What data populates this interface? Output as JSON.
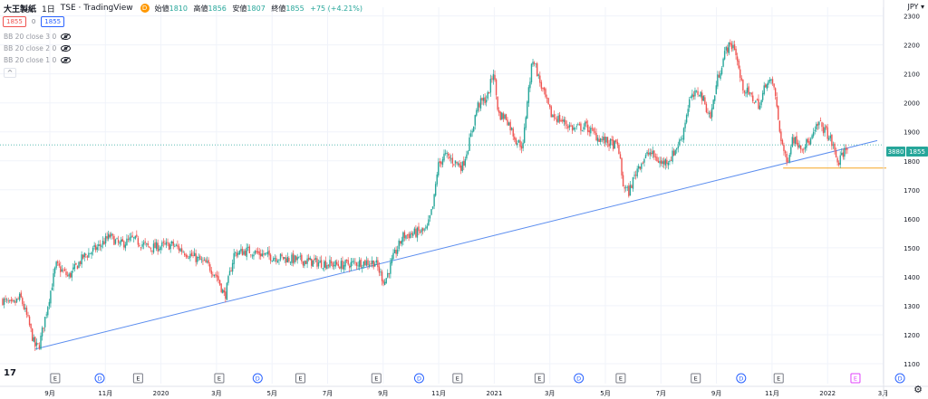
{
  "header": {
    "symbol": "大王製紙",
    "timeframe": "1日",
    "exchange": "TSE · TradingView",
    "status_dot": "D",
    "ohlc": [
      {
        "label": "始値",
        "value": "1810"
      },
      {
        "label": "高値",
        "value": "1856"
      },
      {
        "label": "安値",
        "value": "1807"
      },
      {
        "label": "終値",
        "value": "1855"
      }
    ],
    "change": "+75 (+4.21%)"
  },
  "trade_boxes": {
    "sell": "1855",
    "spread": "0",
    "buy": "1855"
  },
  "indicators": [
    "BB 20 close 3 0",
    "BB 20 close 2 0",
    "BB 20 close 1 0"
  ],
  "collapse_icon": "^",
  "currency": "JPY",
  "price_tags": {
    "volume": "3880",
    "last": "1855"
  },
  "colors": {
    "up": "#26a69a",
    "down": "#ef5350",
    "trendline": "#5b8def",
    "support": "#f5a623",
    "lastline": "#26a69a",
    "grid": "#f0f3fa"
  },
  "chart_data": {
    "type": "candlestick",
    "y_ticks": [
      1100,
      1200,
      1300,
      1400,
      1500,
      1600,
      1700,
      1800,
      1900,
      2000,
      2100,
      2200,
      2300
    ],
    "ylim": [
      1100,
      2330
    ],
    "x_ticks": [
      "9月",
      "11月",
      "2020",
      "3月",
      "5月",
      "7月",
      "9月",
      "11月",
      "2021",
      "3月",
      "5月",
      "7月",
      "9月",
      "11月",
      "2022",
      "3月"
    ],
    "last_price": 1855,
    "trendline": {
      "from_price": 1150,
      "to_price": 1870
    },
    "support_line": {
      "price": 1775
    },
    "price_path": [
      {
        "t": 0,
        "p": 1320
      },
      {
        "t": 0.011,
        "p": 1300
      },
      {
        "t": 0.021,
        "p": 1330
      },
      {
        "t": 0.03,
        "p": 1250
      },
      {
        "t": 0.038,
        "p": 1160
      },
      {
        "t": 0.043,
        "p": 1160
      },
      {
        "t": 0.051,
        "p": 1270
      },
      {
        "t": 0.063,
        "p": 1440
      },
      {
        "t": 0.078,
        "p": 1400
      },
      {
        "t": 0.096,
        "p": 1470
      },
      {
        "t": 0.112,
        "p": 1500
      },
      {
        "t": 0.127,
        "p": 1540
      },
      {
        "t": 0.138,
        "p": 1510
      },
      {
        "t": 0.154,
        "p": 1530
      },
      {
        "t": 0.174,
        "p": 1500
      },
      {
        "t": 0.201,
        "p": 1510
      },
      {
        "t": 0.225,
        "p": 1470
      },
      {
        "t": 0.243,
        "p": 1440
      },
      {
        "t": 0.254,
        "p": 1400
      },
      {
        "t": 0.263,
        "p": 1330
      },
      {
        "t": 0.274,
        "p": 1480
      },
      {
        "t": 0.29,
        "p": 1490
      },
      {
        "t": 0.318,
        "p": 1470
      },
      {
        "t": 0.343,
        "p": 1460
      },
      {
        "t": 0.371,
        "p": 1450
      },
      {
        "t": 0.399,
        "p": 1440
      },
      {
        "t": 0.425,
        "p": 1450
      },
      {
        "t": 0.441,
        "p": 1450
      },
      {
        "t": 0.452,
        "p": 1380
      },
      {
        "t": 0.463,
        "p": 1470
      },
      {
        "t": 0.474,
        "p": 1540
      },
      {
        "t": 0.487,
        "p": 1550
      },
      {
        "t": 0.502,
        "p": 1560
      },
      {
        "t": 0.51,
        "p": 1650
      },
      {
        "t": 0.515,
        "p": 1780
      },
      {
        "t": 0.523,
        "p": 1820
      },
      {
        "t": 0.533,
        "p": 1800
      },
      {
        "t": 0.544,
        "p": 1780
      },
      {
        "t": 0.553,
        "p": 1870
      },
      {
        "t": 0.562,
        "p": 1990
      },
      {
        "t": 0.574,
        "p": 2020
      },
      {
        "t": 0.581,
        "p": 2110
      },
      {
        "t": 0.587,
        "p": 1960
      },
      {
        "t": 0.596,
        "p": 1950
      },
      {
        "t": 0.608,
        "p": 1870
      },
      {
        "t": 0.616,
        "p": 1850
      },
      {
        "t": 0.621,
        "p": 2010
      },
      {
        "t": 0.628,
        "p": 2160
      },
      {
        "t": 0.635,
        "p": 2080
      },
      {
        "t": 0.649,
        "p": 1960
      },
      {
        "t": 0.661,
        "p": 1940
      },
      {
        "t": 0.676,
        "p": 1910
      },
      {
        "t": 0.69,
        "p": 1920
      },
      {
        "t": 0.705,
        "p": 1880
      },
      {
        "t": 0.719,
        "p": 1860
      },
      {
        "t": 0.729,
        "p": 1850
      },
      {
        "t": 0.734,
        "p": 1720
      },
      {
        "t": 0.741,
        "p": 1690
      },
      {
        "t": 0.752,
        "p": 1780
      },
      {
        "t": 0.766,
        "p": 1830
      },
      {
        "t": 0.78,
        "p": 1790
      },
      {
        "t": 0.791,
        "p": 1810
      },
      {
        "t": 0.804,
        "p": 1880
      },
      {
        "t": 0.813,
        "p": 2010
      },
      {
        "t": 0.825,
        "p": 2040
      },
      {
        "t": 0.838,
        "p": 1950
      },
      {
        "t": 0.846,
        "p": 2080
      },
      {
        "t": 0.857,
        "p": 2190
      },
      {
        "t": 0.866,
        "p": 2200
      },
      {
        "t": 0.875,
        "p": 2060
      },
      {
        "t": 0.886,
        "p": 2020
      },
      {
        "t": 0.897,
        "p": 1990
      },
      {
        "t": 0.904,
        "p": 2080
      },
      {
        "t": 0.913,
        "p": 2060
      },
      {
        "t": 0.92,
        "p": 1900
      },
      {
        "t": 0.928,
        "p": 1790
      },
      {
        "t": 0.935,
        "p": 1880
      },
      {
        "t": 0.946,
        "p": 1850
      },
      {
        "t": 0.957,
        "p": 1870
      },
      {
        "t": 0.966,
        "p": 1930
      },
      {
        "t": 0.975,
        "p": 1900
      },
      {
        "t": 0.982,
        "p": 1860
      },
      {
        "t": 0.989,
        "p": 1790
      },
      {
        "t": 1,
        "p": 1855
      }
    ],
    "event_markers": [
      {
        "label": "E",
        "kind": "earnings",
        "t": 0.03
      },
      {
        "label": "D",
        "kind": "dividend",
        "t": 0.081
      },
      {
        "label": "E",
        "kind": "earnings",
        "t": 0.125
      },
      {
        "label": "E",
        "kind": "earnings",
        "t": 0.218
      },
      {
        "label": "D",
        "kind": "dividend",
        "t": 0.262
      },
      {
        "label": "E",
        "kind": "earnings",
        "t": 0.311
      },
      {
        "label": "E",
        "kind": "earnings",
        "t": 0.398
      },
      {
        "label": "D",
        "kind": "dividend",
        "t": 0.447
      },
      {
        "label": "E",
        "kind": "earnings",
        "t": 0.491
      },
      {
        "label": "E",
        "kind": "earnings",
        "t": 0.585
      },
      {
        "label": "D",
        "kind": "dividend",
        "t": 0.63
      },
      {
        "label": "E",
        "kind": "earnings",
        "t": 0.678
      },
      {
        "label": "E",
        "kind": "earnings",
        "t": 0.764
      },
      {
        "label": "D",
        "kind": "dividend",
        "t": 0.816
      },
      {
        "label": "E",
        "kind": "earnings",
        "t": 0.859
      },
      {
        "label": "E",
        "kind": "future",
        "t": 0.947
      },
      {
        "label": "D",
        "kind": "dividend",
        "t": 0.998
      }
    ]
  }
}
